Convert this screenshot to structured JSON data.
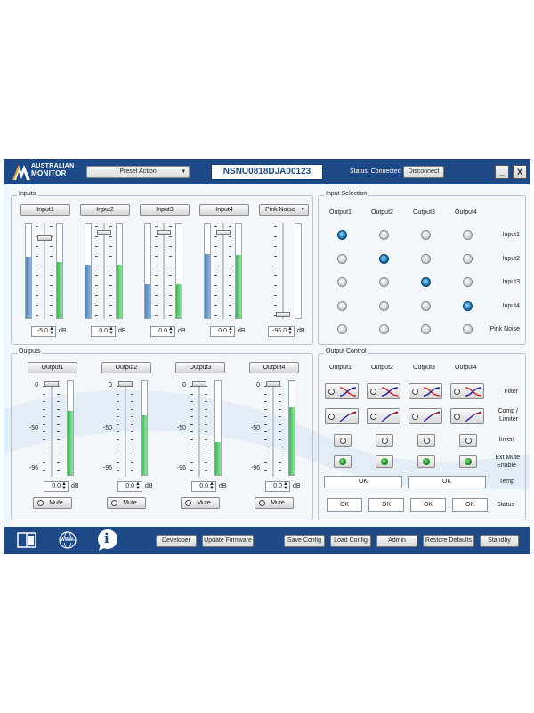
{
  "header": {
    "brand_line1": "AUSTRALIAN",
    "brand_line2": "MONITOR",
    "preset_label": "Preset Action",
    "serial": "NSNU0818DJA00123",
    "status": "Status: Connected",
    "disconnect": "Disconnect",
    "minimize": "_",
    "close": "X"
  },
  "inputs": {
    "title": "Inputs",
    "db_unit": "dB",
    "channels": [
      {
        "label": "Input1",
        "value": "-5.0",
        "level": 0.65
      },
      {
        "label": "Input2",
        "value": "0.0",
        "level": 0.57
      },
      {
        "label": "Input3",
        "value": "0.0",
        "level": 0.36
      },
      {
        "label": "Input4",
        "value": "0.0",
        "level": 0.68
      }
    ],
    "pink_noise": {
      "label": "Pink Noise",
      "value": "-96.0"
    }
  },
  "input_meter_green": [
    0.59,
    0.57,
    0.36,
    0.67
  ],
  "input_selection": {
    "title": "Input Selection",
    "outputs": [
      "Output1",
      "Output2",
      "Output3",
      "Output4"
    ],
    "rows": [
      "Input1",
      "Input2",
      "Input3",
      "Input4",
      "Pink Noise"
    ],
    "selected": [
      0,
      1,
      2,
      3,
      -1
    ]
  },
  "outputs": {
    "title": "Outputs",
    "scale": [
      "0",
      "-50",
      "-96"
    ],
    "db_unit": "dB",
    "mute_label": "Mute",
    "channels": [
      {
        "label": "Output1",
        "value": "0.0",
        "level": 0.68
      },
      {
        "label": "Output2",
        "value": "0.0",
        "level": 0.63
      },
      {
        "label": "Output3",
        "value": "0.0",
        "level": 0.35
      },
      {
        "label": "Output4",
        "value": "0.0",
        "level": 0.72
      }
    ]
  },
  "output_control": {
    "title": "Output Control",
    "outputs": [
      "Output1",
      "Output2",
      "Output3",
      "Output4"
    ],
    "rows": {
      "filter": "Filter",
      "comp_line1": "Comp /",
      "comp_line2": "Limiter",
      "invert": "Invert",
      "ext_line1": "Ext Mute",
      "ext_line2": "Enable",
      "temp": "Temp",
      "status": "Status"
    },
    "temp_values": [
      "OK",
      "OK"
    ],
    "status_values": [
      "OK",
      "OK",
      "OK",
      "OK"
    ]
  },
  "footer": {
    "www": "WWW",
    "info": "i",
    "buttons": [
      "Developer",
      "Update Firmware",
      "Save Config",
      "Load Config",
      "Admin",
      "Restore Defaults",
      "Standby"
    ]
  }
}
